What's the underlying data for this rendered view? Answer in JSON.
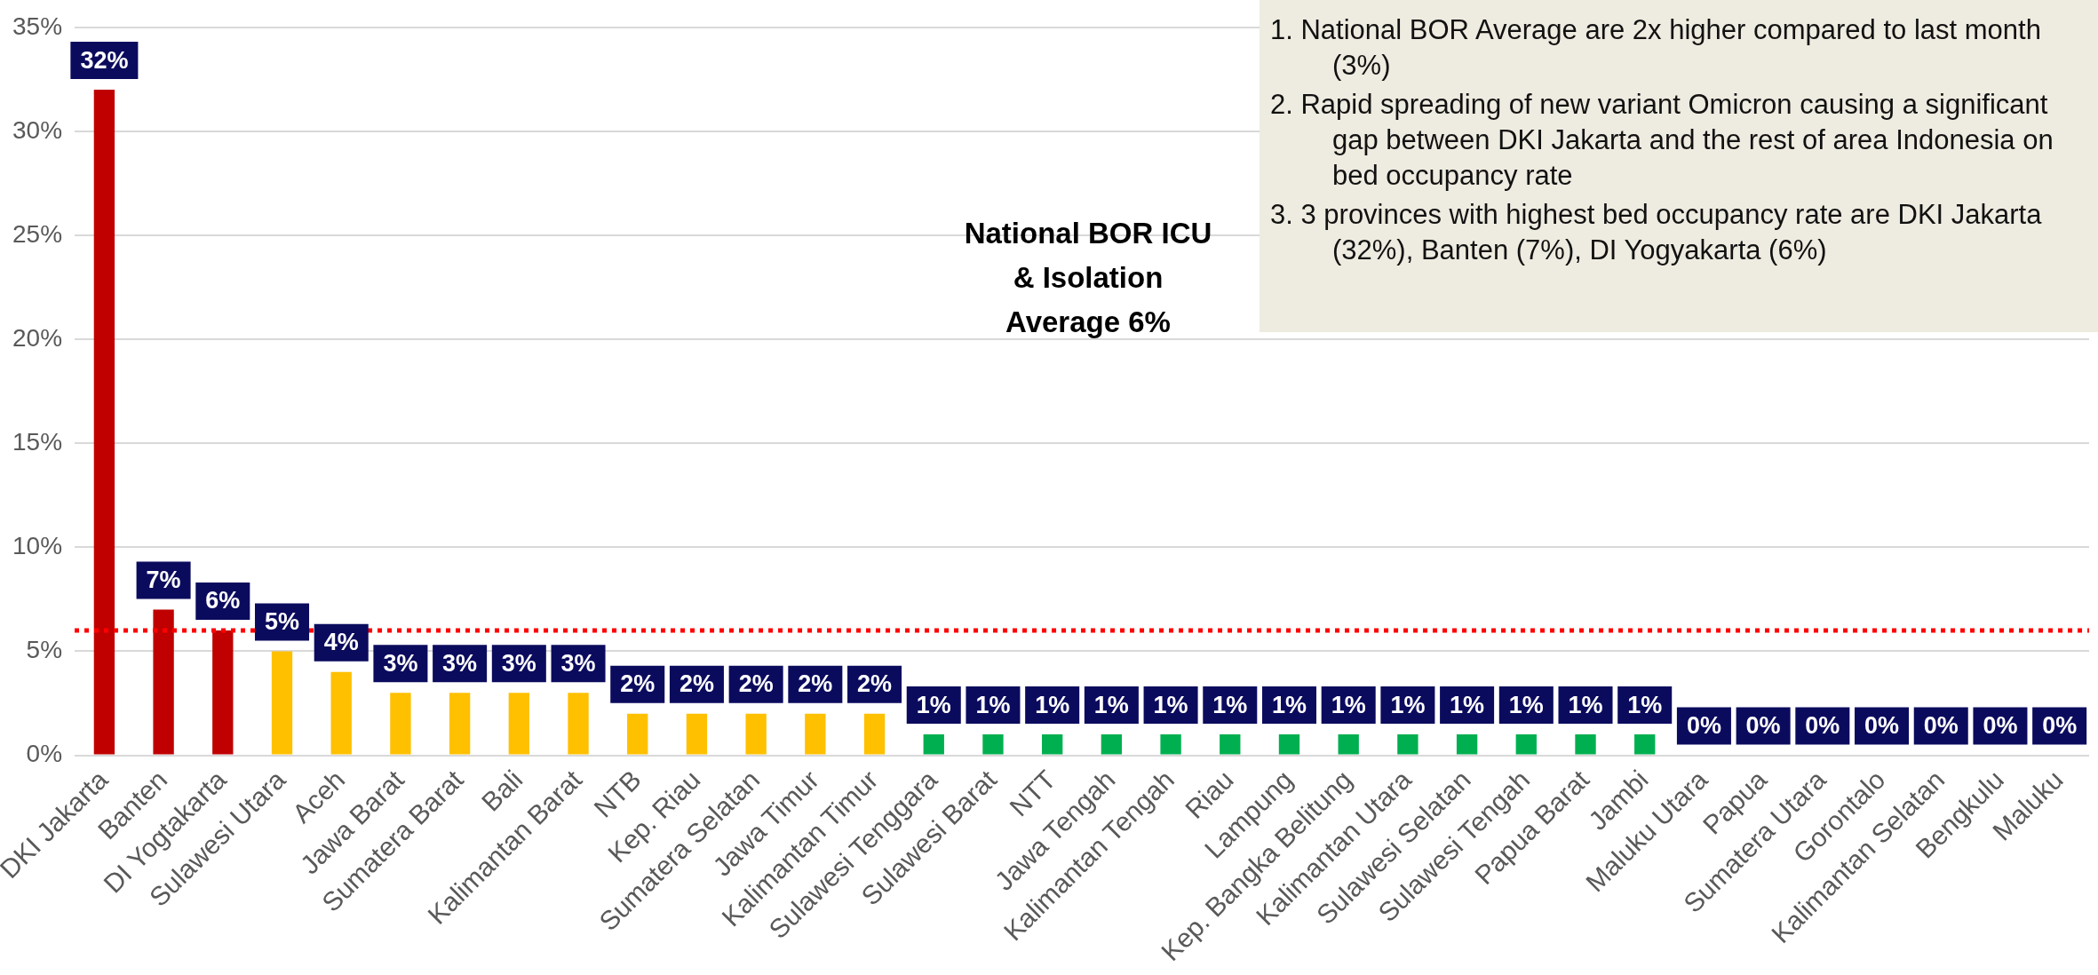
{
  "chart_data": {
    "type": "bar",
    "categories": [
      "DKI Jakarta",
      "Banten",
      "DI Yogtakarta",
      "Sulawesi Utara",
      "Aceh",
      "Jawa Barat",
      "Sumatera Barat",
      "Bali",
      "Kalimantan Barat",
      "NTB",
      "Kep. Riau",
      "Sumatera Selatan",
      "Jawa Timur",
      "Kalimantan Timur",
      "Sulawesi Tenggara",
      "Sulawesi Barat",
      "NTT",
      "Jawa Tengah",
      "Kalimantan Tengah",
      "Riau",
      "Lampung",
      "Kep. Bangka Belitung",
      "Kalimantan Utara",
      "Sulawesi Selatan",
      "Sulawesi Tengah",
      "Papua Barat",
      "Jambi",
      "Maluku Utara",
      "Papua",
      "Sumatera Utara",
      "Gorontalo",
      "Kalimantan Selatan",
      "Bengkulu",
      "Maluku"
    ],
    "values": [
      32,
      7,
      6,
      5,
      4,
      3,
      3,
      3,
      3,
      2,
      2,
      2,
      2,
      2,
      1,
      1,
      1,
      1,
      1,
      1,
      1,
      1,
      1,
      1,
      1,
      1,
      1,
      0,
      0,
      0,
      0,
      0,
      0,
      0
    ],
    "value_labels": [
      "32%",
      "7%",
      "6%",
      "5%",
      "4%",
      "3%",
      "3%",
      "3%",
      "3%",
      "2%",
      "2%",
      "2%",
      "2%",
      "2%",
      "1%",
      "1%",
      "1%",
      "1%",
      "1%",
      "1%",
      "1%",
      "1%",
      "1%",
      "1%",
      "1%",
      "1%",
      "1%",
      "0%",
      "0%",
      "0%",
      "0%",
      "0%",
      "0%",
      "0%"
    ],
    "colors": [
      "#c00000",
      "#c00000",
      "#c00000",
      "#ffc000",
      "#ffc000",
      "#ffc000",
      "#ffc000",
      "#ffc000",
      "#ffc000",
      "#ffc000",
      "#ffc000",
      "#ffc000",
      "#ffc000",
      "#ffc000",
      "#00b050",
      "#00b050",
      "#00b050",
      "#00b050",
      "#00b050",
      "#00b050",
      "#00b050",
      "#00b050",
      "#00b050",
      "#00b050",
      "#00b050",
      "#00b050",
      "#00b050",
      "#00b050",
      "#00b050",
      "#00b050",
      "#00b050",
      "#00b050",
      "#00b050",
      "#00b050"
    ],
    "ylim": [
      0,
      35
    ],
    "yticks": [
      {
        "value": 0,
        "label": "0%"
      },
      {
        "value": 5,
        "label": "5%"
      },
      {
        "value": 10,
        "label": "10%"
      },
      {
        "value": 15,
        "label": "15%"
      },
      {
        "value": 20,
        "label": "20%"
      },
      {
        "value": 25,
        "label": "25%"
      },
      {
        "value": 30,
        "label": "30%"
      },
      {
        "value": 35,
        "label": "35%"
      }
    ],
    "grid": "y",
    "ref_lines": [
      {
        "axis": "y",
        "value": 6,
        "color": "#ff0000",
        "line_style": "dotted"
      }
    ],
    "annotations": [
      "National BOR ICU & Isolation Average 6%",
      "1. National BOR Average are 2x higher compared to last month (3%)",
      "2. Rapid spreading of new variant Omicron causing a significant gap between DKI Jakarta and the rest of area Indonesia on bed occupancy rate",
      "3. 3 provinces with highest bed occupancy rate are DKI Jakarta (32%), Banten (7%), DI Yogyakarta (6%)"
    ]
  }
}
